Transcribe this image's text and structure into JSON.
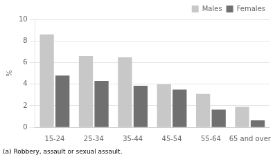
{
  "chart_data": {
    "type": "bar",
    "categories": [
      "15-24",
      "25-34",
      "35-44",
      "45-54",
      "55-64",
      "65 and over"
    ],
    "series": [
      {
        "name": "Males",
        "color": "#c8c8c8",
        "values": [
          8.6,
          6.6,
          6.5,
          4.0,
          3.1,
          1.9
        ]
      },
      {
        "name": "Females",
        "color": "#707070",
        "values": [
          4.8,
          4.3,
          3.85,
          3.5,
          1.65,
          0.65
        ]
      }
    ],
    "ylabel": "%",
    "annotations": [
      "(a) Robbery, assault or sexual assault."
    ],
    "ylim": [
      0,
      10
    ],
    "yticks": [
      0,
      2,
      4,
      6,
      8,
      10
    ],
    "grid": true,
    "legend": "upper right"
  }
}
